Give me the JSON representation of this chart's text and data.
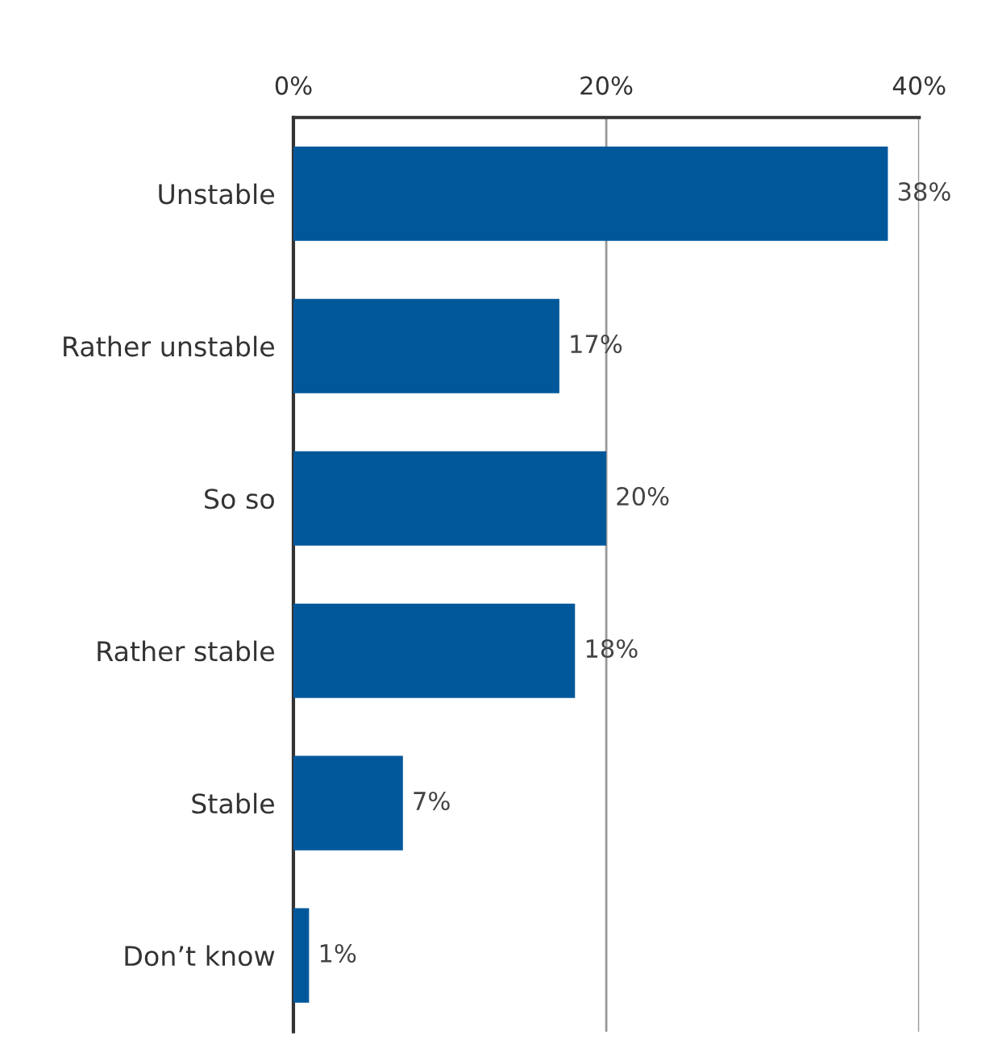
{
  "chart_data": {
    "type": "bar",
    "orientation": "horizontal",
    "categories": [
      "Unstable",
      "Rather unstable",
      "So so",
      "Rather stable",
      "Stable",
      "Don’t know"
    ],
    "values": [
      38,
      17,
      20,
      18,
      7,
      1
    ],
    "color": "#00589b",
    "xlim": [
      0,
      40
    ],
    "xticks": [
      {
        "value": 0,
        "label": "0%"
      },
      {
        "value": 20,
        "label": "20%"
      },
      {
        "value": 40,
        "label": "40%"
      }
    ],
    "value_labels": [
      "38%",
      "17%",
      "20%",
      "18%",
      "7%",
      "1%"
    ],
    "grid": "x",
    "legend": false
  }
}
